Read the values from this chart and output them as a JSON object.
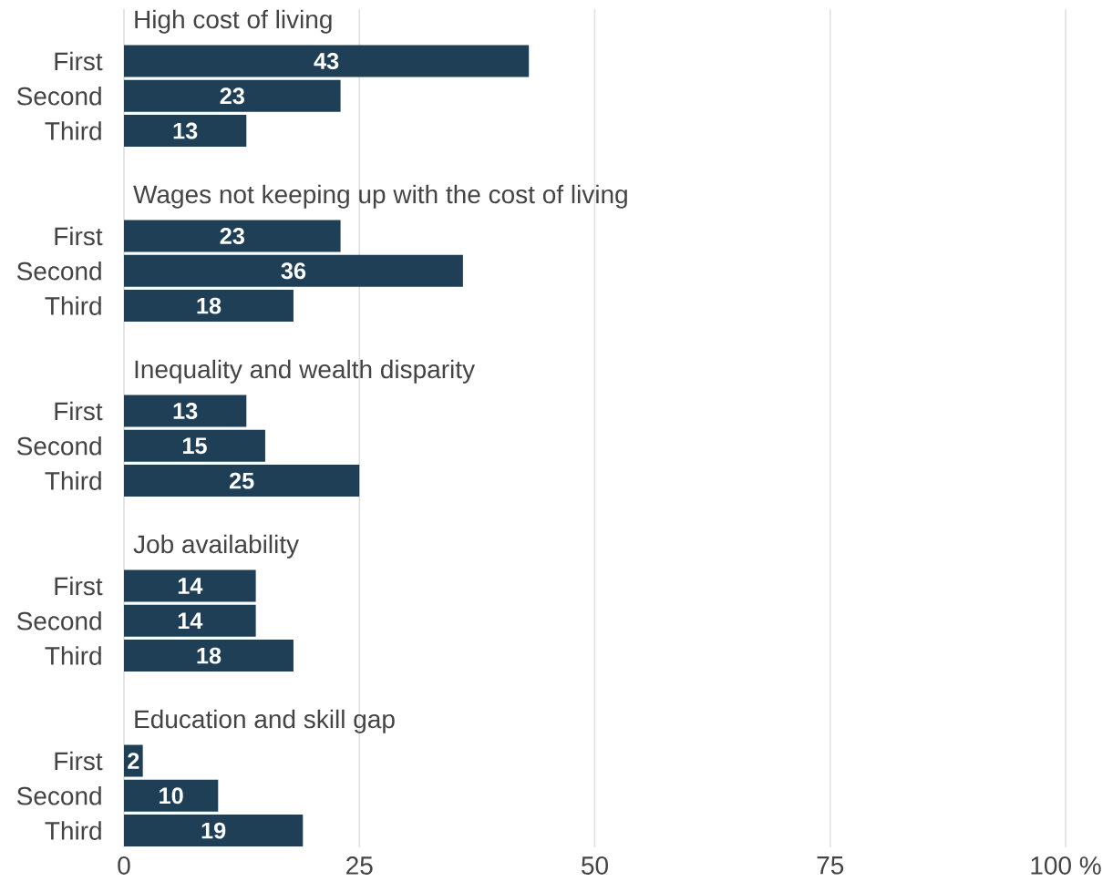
{
  "chart_data": [
    {
      "type": "bar",
      "orientation": "horizontal",
      "title": "High cost of living",
      "categories": [
        "First",
        "Second",
        "Third"
      ],
      "values": [
        43,
        23,
        13
      ],
      "color": "#1e3f56",
      "xlim": [
        0,
        100
      ],
      "grid": "x",
      "data_labels": true,
      "tick_labels": "y"
    },
    {
      "type": "bar",
      "orientation": "horizontal",
      "title": "Wages not keeping up with the cost of living",
      "categories": [
        "First",
        "Second",
        "Third"
      ],
      "values": [
        23,
        36,
        18
      ],
      "color": "#1e3f56",
      "xlim": [
        0,
        100
      ],
      "grid": "x",
      "data_labels": true,
      "tick_labels": "y"
    },
    {
      "type": "bar",
      "orientation": "horizontal",
      "title": "Inequality and wealth disparity",
      "categories": [
        "First",
        "Second",
        "Third"
      ],
      "values": [
        13,
        15,
        25
      ],
      "color": "#1e3f56",
      "xlim": [
        0,
        100
      ],
      "grid": "x",
      "data_labels": true,
      "tick_labels": "y"
    },
    {
      "type": "bar",
      "orientation": "horizontal",
      "title": "Job availability",
      "categories": [
        "First",
        "Second",
        "Third"
      ],
      "values": [
        14,
        14,
        18
      ],
      "color": "#1e3f56",
      "xlim": [
        0,
        100
      ],
      "grid": "x",
      "data_labels": true,
      "tick_labels": "y"
    },
    {
      "type": "bar",
      "orientation": "horizontal",
      "title": "Education and skill gap",
      "categories": [
        "First",
        "Second",
        "Third"
      ],
      "values": [
        2,
        10,
        19
      ],
      "color": "#1e3f56",
      "xlim": [
        0,
        100
      ],
      "xticks": [
        0,
        25,
        50,
        75,
        {
          "value": 100,
          "label": "100 %"
        }
      ],
      "grid": "x",
      "data_labels": true
    }
  ]
}
